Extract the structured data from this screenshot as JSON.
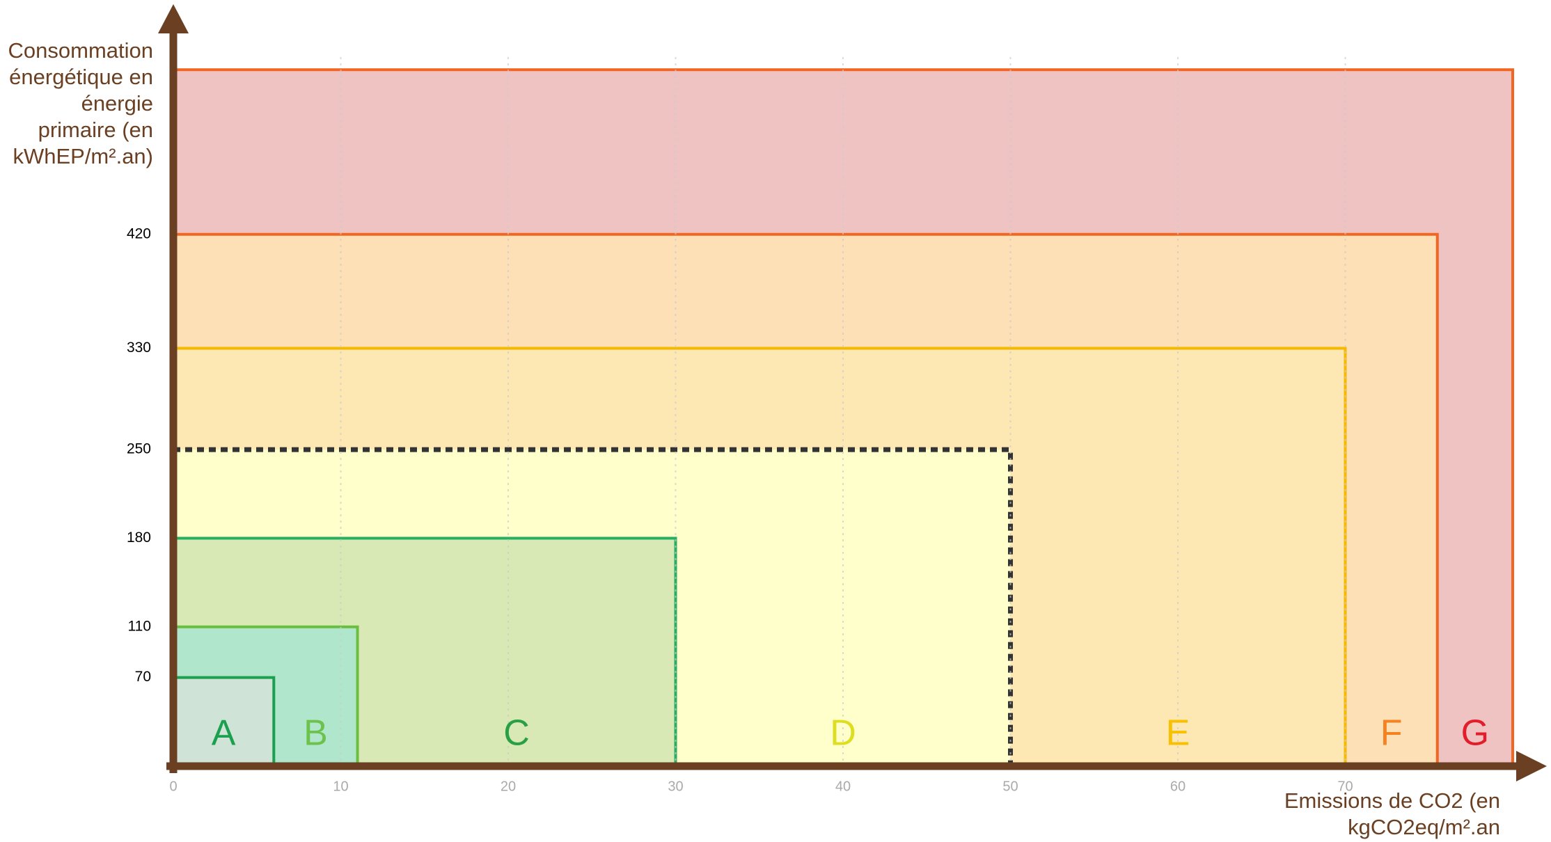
{
  "chart_data": {
    "type": "nested-rect",
    "y_label_lines": [
      "Consommation",
      "énergétique en",
      "énergie",
      "primaire (en",
      "kWhEP/m².an)"
    ],
    "x_label_lines": [
      "Emissions de CO2 (en",
      "kgCO2eq/m².an"
    ],
    "xlim": [
      0,
      80
    ],
    "ylim": [
      0,
      560
    ],
    "xticks": [
      0,
      10,
      20,
      30,
      40,
      50,
      60,
      70
    ],
    "yticks": [
      70,
      110,
      180,
      250,
      330,
      420
    ],
    "grid": true,
    "series": [
      {
        "name": "G",
        "x": 80,
        "y": 550,
        "color": "#efc3c1",
        "border": "#f26522",
        "label_color": "#e31d2b"
      },
      {
        "name": "F",
        "x": 75.5,
        "y": 420,
        "color": "#fde0b5",
        "border": "#f26522",
        "label_color": "#f58220"
      },
      {
        "name": "E",
        "x": 70,
        "y": 330,
        "color": "#fde8b4",
        "border": "#f7b800",
        "label_color": "#f7c000"
      },
      {
        "name": "D",
        "x": 50,
        "y": 250,
        "color": "#ffffcc",
        "border": "#333333",
        "label_color": "#dede20",
        "dashed": true
      },
      {
        "name": "C",
        "x": 30,
        "y": 180,
        "color": "#d9e9b5",
        "border": "#27ae60",
        "label_color": "#2aa046"
      },
      {
        "name": "B",
        "x": 11,
        "y": 110,
        "color": "#b0e6cc",
        "border": "#6bbf3f",
        "label_color": "#6cc24a"
      },
      {
        "name": "A",
        "x": 6,
        "y": 70,
        "color": "#cfe3d6",
        "border": "#1aa04e",
        "label_color": "#1aa04e"
      }
    ]
  }
}
